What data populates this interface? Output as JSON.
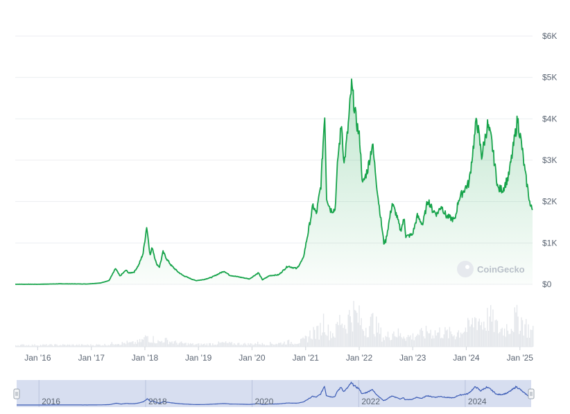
{
  "chart_data": {
    "type": "area",
    "watermark": "CoinGecko",
    "colors": {
      "line": "#16a34a",
      "fill_top": "#16a34a",
      "volume": "#e7eaee",
      "navigator_bg": "#d7def0",
      "navigator_line": "#3b5bb5"
    },
    "y_ticks": [
      "$0",
      "$1K",
      "$2K",
      "$3K",
      "$4K",
      "$5K",
      "$6K"
    ],
    "ylim": [
      0,
      6000
    ],
    "x_ticks": [
      "Jan '16",
      "Jan '17",
      "Jan '18",
      "Jan '19",
      "Jan '20",
      "Jan '21",
      "Jan '22",
      "Jan '23",
      "Jan '24",
      "Jan '25"
    ],
    "navigator_ticks": [
      "2016",
      "2018",
      "2020",
      "2022",
      "2024"
    ],
    "grid": true,
    "price_series": {
      "name": "",
      "points": [
        [
          "2015-08-01",
          2
        ],
        [
          "2016-01-01",
          1
        ],
        [
          "2016-06-01",
          12
        ],
        [
          "2016-12-01",
          8
        ],
        [
          "2017-03-01",
          30
        ],
        [
          "2017-05-01",
          90
        ],
        [
          "2017-06-15",
          380
        ],
        [
          "2017-07-15",
          200
        ],
        [
          "2017-08-25",
          340
        ],
        [
          "2017-09-15",
          270
        ],
        [
          "2017-10-20",
          300
        ],
        [
          "2017-11-20",
          470
        ],
        [
          "2017-12-20",
          750
        ],
        [
          "2018-01-13",
          1400
        ],
        [
          "2018-02-06",
          700
        ],
        [
          "2018-02-20",
          900
        ],
        [
          "2018-03-20",
          500
        ],
        [
          "2018-04-10",
          420
        ],
        [
          "2018-05-05",
          780
        ],
        [
          "2018-06-01",
          600
        ],
        [
          "2018-07-01",
          450
        ],
        [
          "2018-08-15",
          300
        ],
        [
          "2018-09-15",
          220
        ],
        [
          "2018-11-20",
          120
        ],
        [
          "2018-12-15",
          90
        ],
        [
          "2019-02-01",
          110
        ],
        [
          "2019-04-01",
          170
        ],
        [
          "2019-06-25",
          320
        ],
        [
          "2019-08-01",
          220
        ],
        [
          "2019-10-01",
          180
        ],
        [
          "2019-12-15",
          130
        ],
        [
          "2020-02-14",
          280
        ],
        [
          "2020-03-12",
          110
        ],
        [
          "2020-05-01",
          210
        ],
        [
          "2020-07-01",
          230
        ],
        [
          "2020-09-01",
          440
        ],
        [
          "2020-11-01",
          380
        ],
        [
          "2020-12-15",
          620
        ],
        [
          "2021-01-15",
          1200
        ],
        [
          "2021-02-20",
          1900
        ],
        [
          "2021-03-15",
          1700
        ],
        [
          "2021-04-15",
          2400
        ],
        [
          "2021-05-11",
          4150
        ],
        [
          "2021-05-24",
          2100
        ],
        [
          "2021-06-20",
          1800
        ],
        [
          "2021-07-20",
          1800
        ],
        [
          "2021-08-10",
          3100
        ],
        [
          "2021-09-03",
          3900
        ],
        [
          "2021-09-20",
          2900
        ],
        [
          "2021-10-15",
          3700
        ],
        [
          "2021-11-10",
          4800
        ],
        [
          "2021-12-10",
          4000
        ],
        [
          "2022-01-05",
          3500
        ],
        [
          "2022-01-24",
          2400
        ],
        [
          "2022-03-01",
          2800
        ],
        [
          "2022-04-01",
          3400
        ],
        [
          "2022-05-10",
          2100
        ],
        [
          "2022-06-18",
          1000
        ],
        [
          "2022-07-01",
          1050
        ],
        [
          "2022-08-14",
          1950
        ],
        [
          "2022-09-10",
          1700
        ],
        [
          "2022-10-10",
          1300
        ],
        [
          "2022-11-05",
          1600
        ],
        [
          "2022-11-15",
          1150
        ],
        [
          "2022-12-30",
          1200
        ],
        [
          "2023-02-01",
          1650
        ],
        [
          "2023-03-10",
          1450
        ],
        [
          "2023-04-15",
          2050
        ],
        [
          "2023-05-15",
          1800
        ],
        [
          "2023-06-15",
          1700
        ],
        [
          "2023-07-15",
          1900
        ],
        [
          "2023-08-18",
          1650
        ],
        [
          "2023-10-15",
          1550
        ],
        [
          "2023-11-10",
          2050
        ],
        [
          "2023-12-28",
          2350
        ],
        [
          "2024-01-20",
          2450
        ],
        [
          "2024-03-12",
          4000
        ],
        [
          "2024-04-15",
          3100
        ],
        [
          "2024-05-25",
          3850
        ],
        [
          "2024-06-20",
          3500
        ],
        [
          "2024-08-05",
          2300
        ],
        [
          "2024-09-07",
          2300
        ],
        [
          "2024-10-15",
          2600
        ],
        [
          "2024-11-12",
          3200
        ],
        [
          "2024-12-16",
          4000
        ],
        [
          "2025-01-15",
          3300
        ],
        [
          "2025-02-05",
          2700
        ],
        [
          "2025-02-28",
          2200
        ],
        [
          "2025-03-12",
          1900
        ],
        [
          "2025-03-28",
          1800
        ]
      ]
    }
  }
}
